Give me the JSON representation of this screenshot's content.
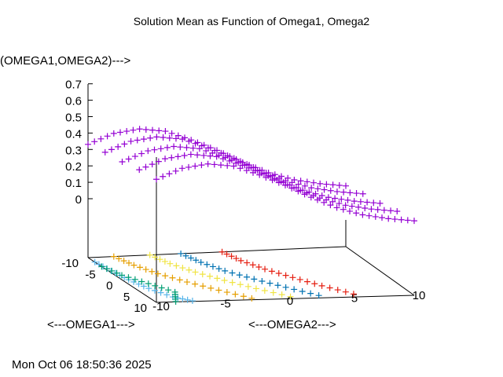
{
  "chart_data": {
    "type": "scatter3d",
    "title": "Solution Mean as Function of Omega1, Omega2",
    "xlabel": "<---OMEGA1--->",
    "ylabel": "<---OMEGA2--->",
    "zlabel": "(OMEGA1,OMEGA2)--->",
    "xlim": [
      -10,
      10
    ],
    "ylim": [
      -10,
      10
    ],
    "zlim": [
      0,
      0.7
    ],
    "x_ticks": [
      "-10",
      "-5",
      "0",
      "5",
      "10"
    ],
    "y_ticks": [
      "-10",
      "-5",
      "0",
      "5",
      "10"
    ],
    "z_ticks": [
      "0",
      "0.1",
      "0.2",
      "0.3",
      "0.4",
      "0.5",
      "0.6",
      "0.7"
    ],
    "grid": false,
    "surface": {
      "color": "#9400d3",
      "omega1": [
        -10,
        -5,
        0,
        5,
        10
      ],
      "omega2": [
        -10,
        -8,
        -6,
        -4,
        -2,
        0,
        2,
        4,
        6,
        8,
        10
      ],
      "z": [
        [
          0.33,
          0.39,
          0.41,
          0.39,
          0.33,
          0.26,
          0.18,
          0.11,
          0.06,
          0.03,
          0.01
        ],
        [
          0.35,
          0.41,
          0.43,
          0.41,
          0.35,
          0.28,
          0.2,
          0.13,
          0.08,
          0.05,
          0.03
        ],
        [
          0.36,
          0.42,
          0.44,
          0.42,
          0.36,
          0.29,
          0.21,
          0.14,
          0.09,
          0.06,
          0.04
        ],
        [
          0.38,
          0.44,
          0.46,
          0.44,
          0.38,
          0.31,
          0.23,
          0.16,
          0.11,
          0.08,
          0.06
        ],
        [
          0.39,
          0.45,
          0.47,
          0.45,
          0.39,
          0.32,
          0.24,
          0.17,
          0.12,
          0.09,
          0.07
        ]
      ]
    },
    "contours": [
      {
        "color": "#e51e10",
        "omega1": [
          -10,
          -6,
          -2,
          2,
          6,
          10
        ],
        "omega2": [
          0.4,
          0.8,
          1.6,
          2.7,
          3.9,
          5.3
        ]
      },
      {
        "color": "#0072b2",
        "omega1": [
          -10,
          -6,
          -2,
          2,
          6,
          10
        ],
        "omega2": [
          -2.8,
          -2.3,
          -1.5,
          -0.3,
          1.1,
          2.6
        ]
      },
      {
        "color": "#f0e442",
        "omega1": [
          -10,
          -6,
          -2,
          2,
          6,
          10
        ],
        "omega2": [
          -5.2,
          -4.7,
          -3.8,
          -2.6,
          -1.2,
          0.4
        ]
      },
      {
        "color": "#e69f00",
        "omega1": [
          -10,
          -6,
          -2,
          2,
          6,
          10
        ],
        "omega2": [
          -8,
          -7.5,
          -6.7,
          -5.5,
          -4.1,
          -2.6
        ]
      },
      {
        "color": "#56b4e9",
        "omega1": [
          -8,
          -4,
          0,
          4,
          8,
          10
        ],
        "omega2": [
          -10,
          -9.8,
          -9.5,
          -9,
          -8.2,
          -7.2
        ]
      },
      {
        "color": "#009e73",
        "omega1": [
          -6,
          -2,
          2,
          6,
          10
        ],
        "omega2": [
          -10,
          -9.5,
          -8.5,
          -7.5,
          -8.5
        ]
      }
    ]
  },
  "timestamp": "Mon Oct 06 18:50:36 2025"
}
